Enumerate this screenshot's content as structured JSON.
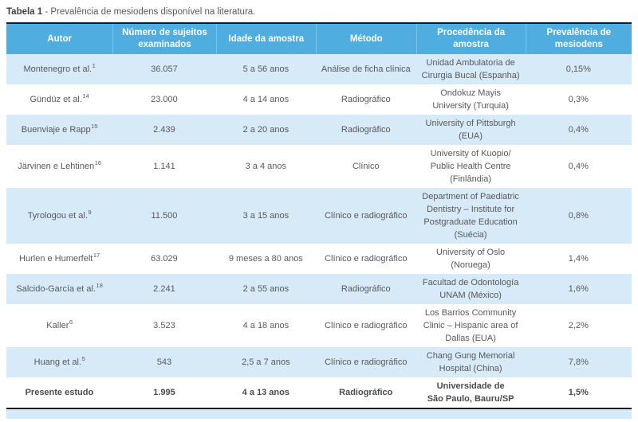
{
  "caption": {
    "label": "Tabela 1",
    "text": " - Prevalência de mesiodens disponível na literatura."
  },
  "colors": {
    "header_blue": "#4fade0",
    "row_blue": "#d7eaf8",
    "rule_black": "#1c1c1e",
    "body_text": "#58595b"
  },
  "table": {
    "columns": [
      "Autor",
      "Número de sujeitos\nexaminados",
      "Idade da amostra",
      "Método",
      "Procedência da\namostra",
      "Prevalência de\nmesiodens"
    ],
    "rows": [
      {
        "author": "Montenegro et al.",
        "ref": "1",
        "subjects": "36.057",
        "age": "5 a 56 anos",
        "method": "Análise de ficha clínica",
        "origin": "Unidad Ambulatoria de\nCirurgia Bucal (Espanha)",
        "prevalence": "0,15%"
      },
      {
        "author": "Gündüz et al.",
        "ref": "14",
        "subjects": "23.000",
        "age": "4 a 14 anos",
        "method": "Radiográfico",
        "origin": "Ondokuz Mayis\nUniversity (Turquia)",
        "prevalence": "0,3%"
      },
      {
        "author": "Buenviaje e Rapp",
        "ref": "15",
        "subjects": "2.439",
        "age": "2 a 20 anos",
        "method": "Radiográfico",
        "origin": "University of Pittsburgh\n(EUA)",
        "prevalence": "0,4%"
      },
      {
        "author": "Järvinen e Lehtinen",
        "ref": "16",
        "subjects": "1.141",
        "age": "3 a 4 anos",
        "method": "Clínico",
        "origin": "University of Kuopio/\nPublic Health Centre\n(Finlândia)",
        "prevalence": "0,4%"
      },
      {
        "author": "Tyrologou et al.",
        "ref": "9",
        "subjects": "11.500",
        "age": "3 a 15 anos",
        "method": "Clínico e radiográfico",
        "origin": "Department of Paediatric\nDentistry – Institute for\nPostgraduate Education\n(Suécia)",
        "prevalence": "0,8%"
      },
      {
        "author": "Hurlen e Humerfelt",
        "ref": "17",
        "subjects": "63.029",
        "age": "9 meses a 80 anos",
        "method": "Clínico e radiográfico",
        "origin": "University of Oslo\n(Noruega)",
        "prevalence": "1,4%"
      },
      {
        "author": "Salcido-García et al.",
        "ref": "18",
        "subjects": "2.241",
        "age": "2 a 55 anos",
        "method": "Radiográfico",
        "origin": "Facultad de Odontología\nUNAM (México)",
        "prevalence": "1,6%"
      },
      {
        "author": "Kaller",
        "ref": "6",
        "subjects": "3.523",
        "age": "4 a 18 anos",
        "method": "Clínico e radiográfico",
        "origin": "Los Barrios Community\nClinic – Hispanic area of\nDallas (EUA)",
        "prevalence": "2,2%"
      },
      {
        "author": "Huang et al.",
        "ref": "5",
        "subjects": "543",
        "age": "2,5 a 7 anos",
        "method": "Clínico e radiográfico",
        "origin": "Chang Gung Memorial\nHospital (China)",
        "prevalence": "7,8%"
      },
      {
        "author": "Presente estudo",
        "ref": "",
        "subjects": "1.995",
        "age": "4 a 13 anos",
        "method": "Radiográfico",
        "origin": "Universidade de\nSão Paulo, Bauru/SP",
        "prevalence": "1,5%"
      }
    ]
  }
}
